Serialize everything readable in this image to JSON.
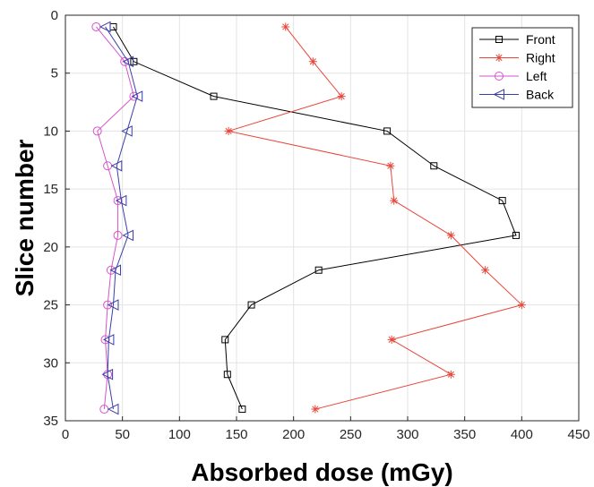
{
  "chart_data": {
    "type": "line",
    "xlabel": "Absorbed dose (mGy)",
    "ylabel": "Slice number",
    "xlim": [
      0,
      450
    ],
    "ylim": [
      0,
      35
    ],
    "y_reversed": true,
    "xticks": [
      0,
      50,
      100,
      150,
      200,
      250,
      300,
      350,
      400,
      450
    ],
    "yticks": [
      0,
      5,
      10,
      15,
      20,
      25,
      30,
      35
    ],
    "grid": true,
    "legend_position": "top-right",
    "series": [
      {
        "name": "Front",
        "color": "#000000",
        "marker": "square",
        "x": [
          42,
          60,
          130,
          282,
          323,
          383,
          395,
          222,
          163,
          140,
          142,
          155
        ],
        "y": [
          1,
          4,
          7,
          10,
          13,
          16,
          19,
          22,
          25,
          28,
          31,
          34
        ]
      },
      {
        "name": "Right",
        "color": "#e8463a",
        "marker": "asterisk",
        "x": [
          193,
          217,
          242,
          143,
          285,
          288,
          338,
          368,
          400,
          286,
          338,
          219
        ],
        "y": [
          1,
          4,
          7,
          10,
          13,
          16,
          19,
          22,
          25,
          28,
          31,
          34
        ]
      },
      {
        "name": "Left",
        "color": "#d655c9",
        "marker": "circle",
        "x": [
          27,
          52,
          60,
          28,
          37,
          46,
          46,
          40,
          37,
          35,
          37,
          34
        ],
        "y": [
          1,
          4,
          7,
          10,
          13,
          16,
          19,
          22,
          25,
          28,
          31,
          34
        ]
      },
      {
        "name": "Back",
        "color": "#3a3fa8",
        "marker": "triangle-left",
        "x": [
          35,
          55,
          63,
          54,
          45,
          49,
          55,
          44,
          42,
          38,
          37,
          42
        ],
        "y": [
          1,
          4,
          7,
          10,
          13,
          16,
          19,
          22,
          25,
          28,
          31,
          34
        ]
      }
    ]
  }
}
